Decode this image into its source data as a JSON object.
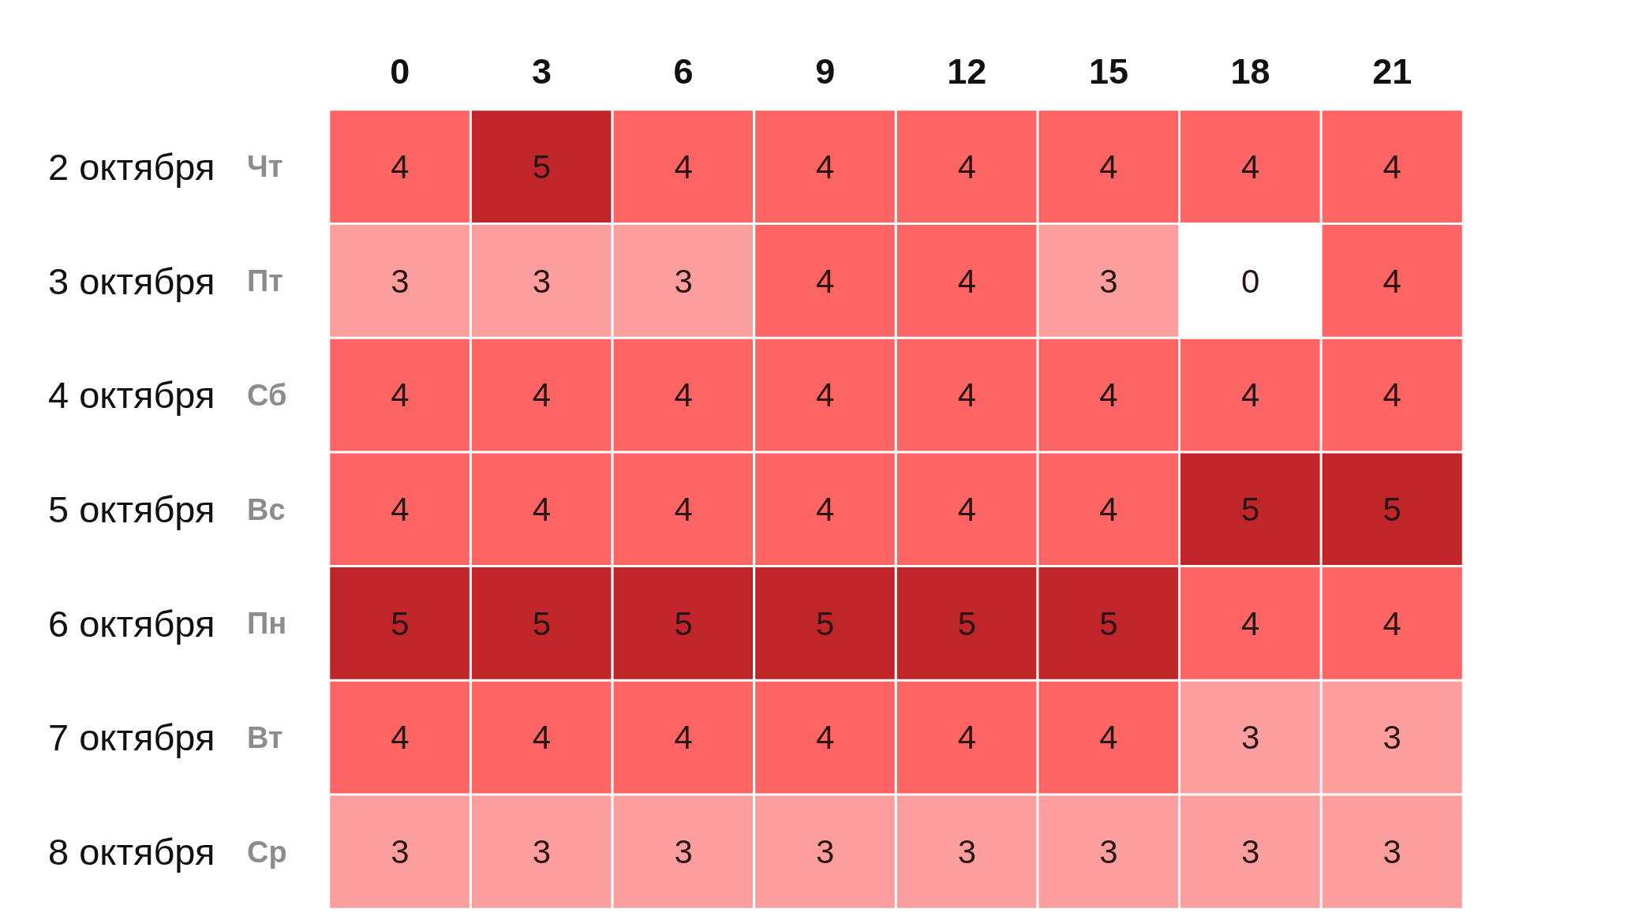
{
  "chart_data": {
    "type": "heatmap",
    "categories": [
      "0",
      "3",
      "6",
      "9",
      "12",
      "15",
      "18",
      "21"
    ],
    "y_categories": [
      "2 октября",
      "3 октября",
      "4 октября",
      "5 октября",
      "6 октября",
      "7 октября",
      "8 октября"
    ],
    "y2_categories": [
      "Чт",
      "Пт",
      "Сб",
      "Вс",
      "Пн",
      "Вт",
      "Ср"
    ],
    "cells": [
      [
        4,
        5,
        4,
        4,
        4,
        4,
        4,
        4
      ],
      [
        3,
        3,
        3,
        4,
        4,
        3,
        0,
        4
      ],
      [
        4,
        4,
        4,
        4,
        4,
        4,
        4,
        4
      ],
      [
        4,
        4,
        4,
        4,
        4,
        4,
        5,
        5
      ],
      [
        5,
        5,
        5,
        5,
        5,
        5,
        4,
        4
      ],
      [
        4,
        4,
        4,
        4,
        4,
        4,
        3,
        3
      ],
      [
        3,
        3,
        3,
        3,
        3,
        3,
        3,
        3
      ]
    ],
    "data_labels": true
  }
}
